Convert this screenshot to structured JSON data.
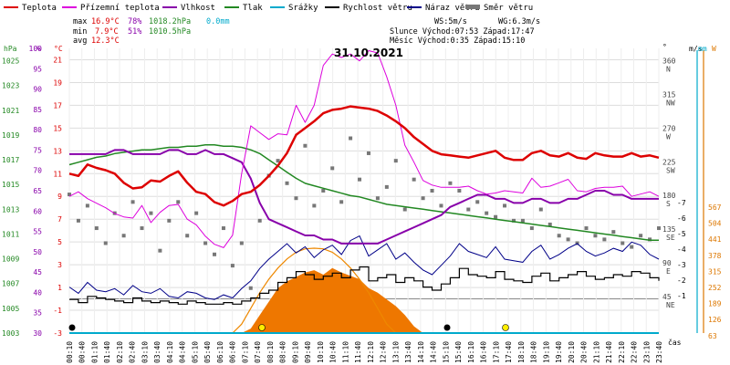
{
  "chart_data": {
    "type": "line",
    "title": "31.10.2021",
    "legend": [
      {
        "name": "Teplota",
        "color": "#dd0000"
      },
      {
        "name": "Přízemní teplota",
        "color": "#dd00dd"
      },
      {
        "name": "Vlhkost",
        "color": "#8800aa"
      },
      {
        "name": "Tlak",
        "color": "#228822"
      },
      {
        "name": "Srážky",
        "color": "#00aacc"
      },
      {
        "name": "Rychlost větru",
        "color": "#000000"
      },
      {
        "name": "Náraz větru",
        "color": "#000088"
      },
      {
        "name": "Směr větru",
        "color": "#777777"
      }
    ],
    "stats": {
      "max_label": "max",
      "max_temp": "16.9°C",
      "max_hum": "78%",
      "max_press": "1018.2hPa",
      "precip": "0.0mm",
      "min_label": "min",
      "min_temp": "7.9°C",
      "min_hum": "51%",
      "min_press": "1010.5hPa",
      "avg_label": "avg",
      "avg_temp": "12.3°C",
      "ws": "WS:5m/s",
      "wg": "WG:6.3m/s",
      "sun": "Slunce Východ:07:53  Západ:17:47",
      "moon": "Měsíc  Východ:0:35   Západ:15:10"
    },
    "axes": {
      "hpa_label": "hPa",
      "pct_label": "%",
      "c_label": "°C",
      "deg_label": "°",
      "ms_label": "m/s",
      "mm_label": "mm",
      "w_label": "W",
      "hpa_ticks": [
        "1025",
        "1023",
        "1021",
        "1019",
        "1017",
        "1015",
        "1013",
        "1011",
        "1009",
        "1007",
        "1005",
        "1003"
      ],
      "pct_ticks": [
        "100",
        "95",
        "90",
        "85",
        "80",
        "75",
        "70",
        "65",
        "60",
        "55",
        "50",
        "45",
        "40",
        "35",
        "30"
      ],
      "c_ticks": [
        "21",
        "19",
        "17",
        "15",
        "13",
        "11",
        "9",
        "7",
        "5",
        "3",
        "1",
        "-1",
        "-3"
      ],
      "dir_ticks": [
        "360",
        "315",
        "270",
        "225",
        "180",
        "135",
        "90",
        "45"
      ],
      "dir_names": [
        "N",
        "NW",
        "W",
        "SW",
        "S",
        "SE",
        "E",
        "NE"
      ],
      "ms_ticks": [
        "-7",
        "-6",
        "-5",
        "-4",
        "-3",
        "-2",
        "-1"
      ],
      "w_ticks": [
        "567",
        "504",
        "441",
        "378",
        "315",
        "252",
        "189",
        "126",
        "63"
      ],
      "xlabel": "čas",
      "x_ticks": [
        "00:10",
        "00:40",
        "01:10",
        "01:40",
        "02:10",
        "02:40",
        "03:10",
        "03:40",
        "04:10",
        "04:40",
        "05:10",
        "05:40",
        "06:10",
        "06:40",
        "07:10",
        "07:40",
        "08:10",
        "08:40",
        "09:10",
        "09:40",
        "10:10",
        "10:40",
        "11:10",
        "11:40",
        "12:10",
        "12:40",
        "13:10",
        "13:40",
        "14:10",
        "14:40",
        "15:10",
        "15:40",
        "16:10",
        "16:40",
        "17:10",
        "17:40",
        "18:10",
        "18:40",
        "19:10",
        "19:40",
        "20:10",
        "20:40",
        "21:10",
        "21:40",
        "22:10",
        "22:40",
        "23:10",
        "23:40"
      ],
      "c_range": [
        -3,
        22
      ],
      "pct_range": [
        30,
        100
      ],
      "hpa_range": [
        1003,
        1026
      ],
      "dir_range": [
        0,
        380
      ]
    },
    "temperature_c": [
      11.0,
      10.8,
      11.8,
      11.5,
      11.3,
      11.0,
      10.2,
      9.7,
      9.8,
      10.4,
      10.3,
      10.8,
      11.2,
      10.2,
      9.4,
      9.2,
      8.5,
      8.2,
      8.6,
      9.2,
      9.4,
      10.0,
      10.8,
      11.7,
      12.8,
      14.4,
      15.0,
      15.6,
      16.3,
      16.6,
      16.7,
      16.9,
      16.8,
      16.7,
      16.5,
      16.1,
      15.6,
      15.0,
      14.2,
      13.6,
      13.0,
      12.7,
      12.6,
      12.5,
      12.4,
      12.6,
      12.8,
      13.0,
      12.4,
      12.2,
      12.2,
      12.8,
      13.0,
      12.6,
      12.5,
      12.8,
      12.4,
      12.3,
      12.8,
      12.6,
      12.5,
      12.5,
      12.8,
      12.5,
      12.6,
      12.4
    ],
    "ground_temp_c": [
      9.0,
      9.4,
      8.8,
      8.4,
      8.0,
      7.5,
      7.2,
      7.1,
      8.2,
      6.7,
      7.6,
      8.2,
      8.3,
      7.0,
      6.5,
      5.5,
      4.8,
      4.5,
      5.6,
      11.0,
      15.2,
      14.6,
      14.0,
      14.5,
      14.4,
      17.0,
      15.5,
      17.0,
      20.5,
      21.5,
      21.2,
      21.5,
      20.9,
      21.8,
      21.6,
      19.5,
      17.0,
      13.5,
      12.0,
      10.4,
      10.0,
      9.8,
      9.8,
      9.8,
      9.9,
      9.5,
      9.2,
      9.3,
      9.5,
      9.4,
      9.3,
      10.6,
      9.8,
      9.9,
      10.2,
      10.5,
      9.5,
      9.4,
      9.7,
      9.8,
      9.8,
      9.9,
      9.0,
      9.2,
      9.4,
      9.0
    ],
    "humidity_pct": [
      74,
      74,
      74,
      74,
      74,
      75,
      75,
      74,
      74,
      74,
      74,
      75,
      75,
      74,
      74,
      75,
      74,
      74,
      73,
      72,
      68,
      62,
      58,
      57,
      56,
      55,
      54,
      54,
      53,
      53,
      52,
      52,
      52,
      52,
      52,
      53,
      54,
      55,
      56,
      57,
      58,
      59,
      61,
      62,
      63,
      64,
      64,
      63,
      63,
      62,
      62,
      63,
      63,
      62,
      62,
      63,
      63,
      64,
      65,
      65,
      64,
      64,
      63,
      63,
      63,
      63
    ],
    "pressure_hpa": [
      1016.6,
      1016.8,
      1017.0,
      1017.2,
      1017.3,
      1017.5,
      1017.6,
      1017.7,
      1017.8,
      1017.8,
      1017.9,
      1018.0,
      1018.0,
      1018.1,
      1018.1,
      1018.2,
      1018.2,
      1018.1,
      1018.1,
      1018.0,
      1017.8,
      1017.5,
      1017.0,
      1016.5,
      1016.0,
      1015.5,
      1015.1,
      1014.9,
      1014.7,
      1014.5,
      1014.3,
      1014.1,
      1014.0,
      1013.8,
      1013.6,
      1013.4,
      1013.3,
      1013.2,
      1013.1,
      1013.0,
      1012.9,
      1012.8,
      1012.7,
      1012.6,
      1012.5,
      1012.4,
      1012.3,
      1012.2,
      1012.1,
      1012.0,
      1011.9,
      1011.8,
      1011.7,
      1011.6,
      1011.5,
      1011.4,
      1011.3,
      1011.2,
      1011.1,
      1011.0,
      1010.9,
      1010.8,
      1010.7,
      1010.6,
      1010.5,
      1010.5
    ],
    "wind_speed_ms": [
      0.4,
      0.2,
      0.6,
      0.5,
      0.4,
      0.3,
      0.2,
      0.5,
      0.3,
      0.2,
      0.3,
      0.2,
      0.1,
      0.3,
      0.2,
      0.1,
      0.1,
      0.2,
      0.1,
      0.3,
      0.5,
      0.8,
      1.0,
      1.5,
      1.8,
      2.2,
      2.0,
      1.7,
      1.9,
      2.1,
      1.8,
      2.3,
      2.5,
      1.6,
      1.8,
      2.0,
      1.5,
      1.8,
      1.6,
      1.2,
      1.0,
      1.4,
      1.8,
      2.4,
      2.0,
      1.9,
      1.8,
      2.2,
      1.7,
      1.6,
      1.5,
      1.9,
      2.1,
      1.6,
      1.8,
      2.0,
      2.2,
      1.9,
      1.7,
      1.8,
      2.0,
      1.9,
      2.2,
      2.1,
      1.8,
      1.6
    ],
    "wind_gust_ms": [
      1.2,
      0.8,
      1.5,
      1.0,
      0.9,
      1.1,
      0.7,
      1.3,
      0.9,
      0.8,
      1.1,
      0.6,
      0.5,
      0.9,
      0.8,
      0.5,
      0.4,
      0.7,
      0.5,
      1.1,
      1.6,
      2.4,
      3.0,
      3.5,
      4.0,
      3.4,
      3.8,
      3.1,
      3.6,
      3.9,
      3.3,
      4.2,
      4.5,
      3.2,
      3.6,
      4.0,
      3.0,
      3.4,
      2.8,
      2.3,
      2.0,
      2.6,
      3.2,
      4.0,
      3.5,
      3.3,
      3.1,
      3.8,
      3.0,
      2.9,
      2.8,
      3.5,
      3.9,
      3.0,
      3.3,
      3.7,
      4.0,
      3.5,
      3.2,
      3.4,
      3.7,
      3.5,
      4.1,
      3.9,
      3.3,
      3.0
    ],
    "wind_dir_deg": [
      185,
      150,
      170,
      140,
      120,
      160,
      130,
      175,
      140,
      160,
      110,
      150,
      175,
      130,
      160,
      120,
      105,
      140,
      90,
      120,
      60,
      150,
      210,
      230,
      200,
      180,
      250,
      170,
      190,
      220,
      175,
      260,
      205,
      240,
      180,
      195,
      230,
      165,
      205,
      180,
      190,
      170,
      200,
      190,
      165,
      175,
      160,
      155,
      170,
      150,
      150,
      140,
      165,
      145,
      130,
      125,
      120,
      140,
      130,
      125,
      135,
      120,
      115,
      130,
      125,
      140
    ],
    "solar_w": [
      0,
      0,
      0,
      0,
      0,
      0,
      0,
      0,
      0,
      0,
      0,
      0,
      0,
      0,
      0,
      0,
      0,
      0,
      0,
      0,
      20,
      80,
      140,
      200,
      230,
      250,
      270,
      280,
      260,
      290,
      270,
      255,
      240,
      200,
      180,
      150,
      120,
      80,
      30,
      0,
      0,
      0,
      0,
      0,
      0,
      0,
      0,
      0,
      0,
      0,
      0,
      0,
      0,
      0,
      0,
      0,
      0,
      0,
      0,
      0,
      0,
      0,
      0,
      0,
      0,
      0
    ],
    "solar_theory_w": [
      0,
      0,
      0,
      0,
      0,
      0,
      0,
      0,
      0,
      0,
      0,
      0,
      0,
      0,
      0,
      0,
      0,
      0,
      0,
      40,
      110,
      180,
      240,
      290,
      330,
      360,
      375,
      378,
      375,
      360,
      330,
      290,
      240,
      180,
      110,
      40,
      0,
      0,
      0,
      0,
      0,
      0,
      0,
      0,
      0,
      0,
      0,
      0,
      0,
      0,
      0,
      0,
      0,
      0,
      0,
      0,
      0,
      0,
      0,
      0,
      0,
      0,
      0,
      0,
      0,
      0
    ],
    "legend_position": "top-left",
    "grid": true
  }
}
